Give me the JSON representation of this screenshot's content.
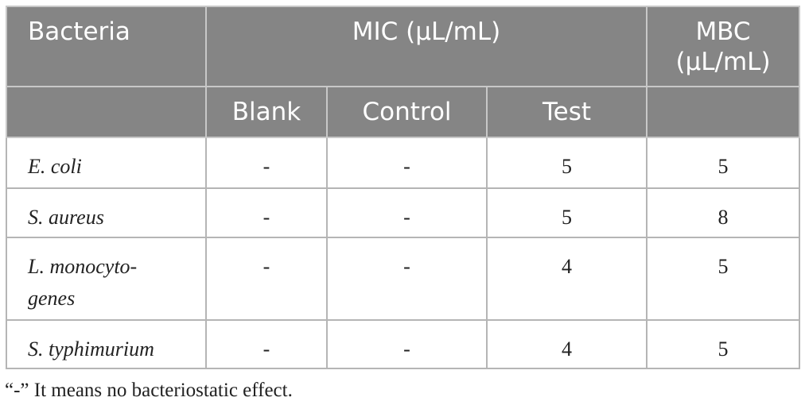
{
  "header": {
    "rows": [
      [
        "Bacteria",
        "MIC (μL/mL)",
        "MBC (μL/mL)"
      ],
      [
        "Blank",
        "Control",
        "Test"
      ]
    ]
  },
  "table": {
    "rows": [
      [
        "E. coli",
        "-",
        "-",
        5,
        5
      ],
      [
        "S. aureus",
        "-",
        "-",
        5,
        8
      ],
      [
        "L. monocyto-genes",
        "-",
        "-",
        4,
        5
      ],
      [
        "S. typhimurium",
        "-",
        "-",
        4,
        5
      ]
    ]
  },
  "footnote": "“-” It means no bacteriostatic effect."
}
